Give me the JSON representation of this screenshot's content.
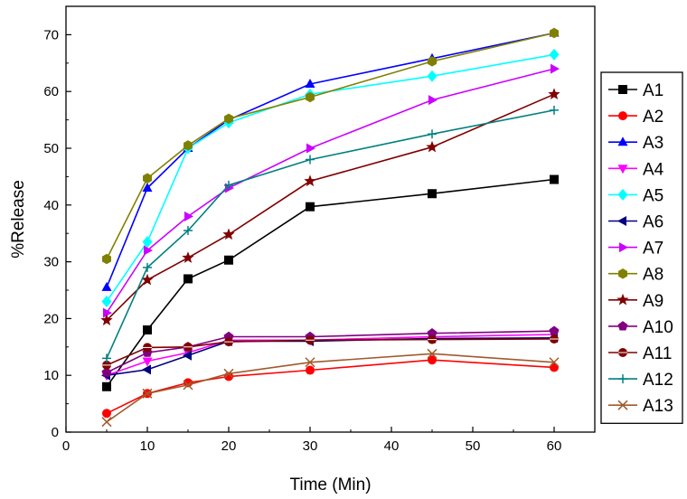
{
  "chart_data": {
    "type": "line",
    "title": "",
    "xlabel": "Time (Min)",
    "ylabel": "%Release",
    "xlim": [
      0,
      65
    ],
    "ylim": [
      0,
      75
    ],
    "xticks": [
      0,
      10,
      20,
      30,
      40,
      50,
      60
    ],
    "yticks": [
      0,
      10,
      20,
      30,
      40,
      50,
      60,
      70
    ],
    "grid": false,
    "legend_position": "right",
    "x": [
      5,
      10,
      15,
      20,
      30,
      45,
      60
    ],
    "series": [
      {
        "name": "A1",
        "color": "#000000",
        "marker": "square",
        "values": [
          8.0,
          18.0,
          27.0,
          30.3,
          39.7,
          42.0,
          44.5
        ]
      },
      {
        "name": "A2",
        "color": "#ff0000",
        "marker": "circle",
        "values": [
          3.3,
          6.8,
          8.7,
          9.8,
          10.9,
          12.7,
          11.4
        ]
      },
      {
        "name": "A3",
        "color": "#0000ff",
        "marker": "triangle-up",
        "values": [
          25.5,
          43.0,
          50.0,
          55.0,
          61.3,
          65.8,
          70.3
        ]
      },
      {
        "name": "A4",
        "color": "#ff00ff",
        "marker": "triangle-down",
        "values": [
          10.0,
          12.5,
          14.0,
          16.2,
          16.2,
          16.8,
          17.2
        ]
      },
      {
        "name": "A5",
        "color": "#00ffff",
        "marker": "diamond",
        "values": [
          23.0,
          33.5,
          50.0,
          54.5,
          59.5,
          62.7,
          66.5
        ]
      },
      {
        "name": "A6",
        "color": "#000080",
        "marker": "triangle-left",
        "values": [
          10.0,
          11.0,
          13.5,
          16.0,
          16.0,
          16.5,
          16.6
        ]
      },
      {
        "name": "A7",
        "color": "#cc00ff",
        "marker": "triangle-right",
        "values": [
          21.0,
          32.0,
          38.0,
          43.0,
          50.0,
          58.5,
          64.0
        ]
      },
      {
        "name": "A8",
        "color": "#808000",
        "marker": "hexagon",
        "values": [
          30.5,
          44.7,
          50.5,
          55.2,
          59.0,
          65.3,
          70.3
        ]
      },
      {
        "name": "A9",
        "color": "#800000",
        "marker": "star",
        "values": [
          19.7,
          26.8,
          30.7,
          34.8,
          44.2,
          50.2,
          59.5
        ]
      },
      {
        "name": "A10",
        "color": "#800080",
        "marker": "pentagon",
        "values": [
          10.5,
          14.0,
          15.0,
          16.8,
          16.8,
          17.4,
          17.8
        ]
      },
      {
        "name": "A11",
        "color": "#800000",
        "marker": "circle-split",
        "values": [
          11.8,
          14.9,
          15.0,
          15.9,
          16.2,
          16.3,
          16.4
        ]
      },
      {
        "name": "A12",
        "color": "#008080",
        "marker": "plus",
        "values": [
          13.0,
          29.0,
          35.5,
          43.5,
          48.0,
          52.5,
          56.7
        ]
      },
      {
        "name": "A13",
        "color": "#a05a2c",
        "marker": "cross",
        "values": [
          1.8,
          6.8,
          8.3,
          10.3,
          12.3,
          13.8,
          12.3
        ]
      }
    ]
  }
}
